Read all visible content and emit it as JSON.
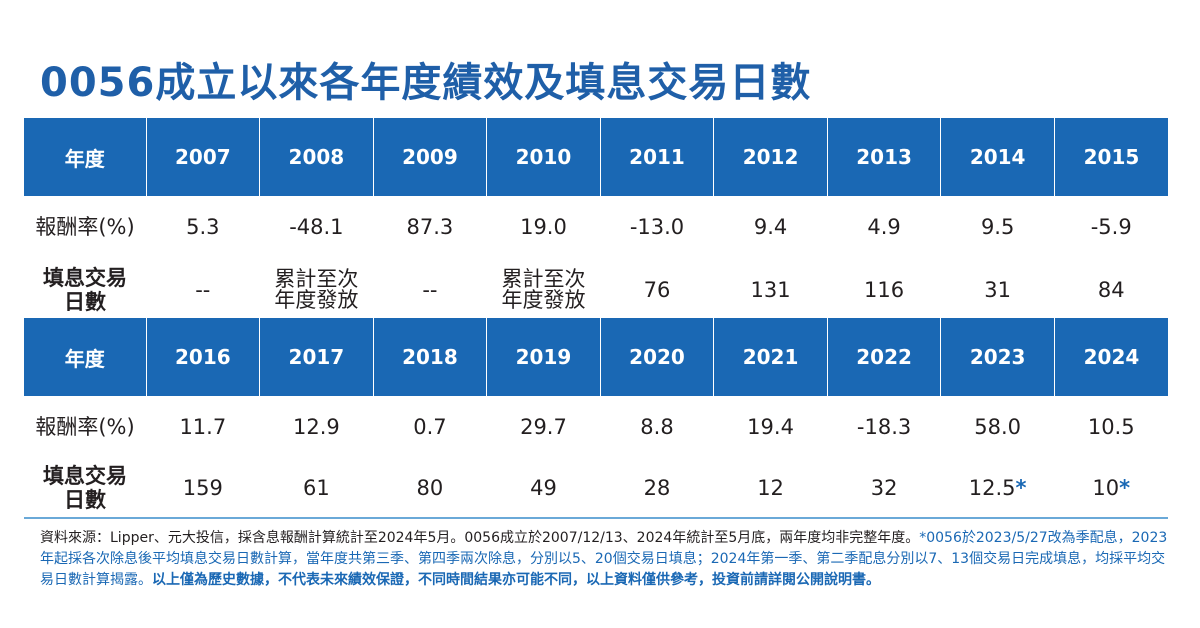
{
  "title": "0056成立以來各年度績效及填息交易日數",
  "table": {
    "header_label": "年度",
    "return_label": "報酬率(%)",
    "days_label_line1": "填息交易",
    "days_label_line2": "日數",
    "blocks": [
      {
        "years": [
          "2007",
          "2008",
          "2009",
          "2010",
          "2011",
          "2012",
          "2013",
          "2014",
          "2015"
        ],
        "returns": [
          "5.3",
          "-48.1",
          "87.3",
          "19.0",
          "-13.0",
          "9.4",
          "4.9",
          "9.5",
          "-5.9"
        ],
        "days": [
          {
            "line1": "--",
            "line2": ""
          },
          {
            "line1": "累計至次",
            "line2": "年度發放"
          },
          {
            "line1": "--",
            "line2": ""
          },
          {
            "line1": "累計至次",
            "line2": "年度發放"
          },
          {
            "line1": "76",
            "line2": ""
          },
          {
            "line1": "131",
            "line2": ""
          },
          {
            "line1": "116",
            "line2": ""
          },
          {
            "line1": "31",
            "line2": ""
          },
          {
            "line1": "84",
            "line2": ""
          }
        ]
      },
      {
        "years": [
          "2016",
          "2017",
          "2018",
          "2019",
          "2020",
          "2021",
          "2022",
          "2023",
          "2024"
        ],
        "returns": [
          "11.7",
          "12.9",
          "0.7",
          "29.7",
          "8.8",
          "19.4",
          "-18.3",
          "58.0",
          "10.5"
        ],
        "days": [
          {
            "value": "159",
            "star": ""
          },
          {
            "value": "61",
            "star": ""
          },
          {
            "value": "80",
            "star": ""
          },
          {
            "value": "49",
            "star": ""
          },
          {
            "value": "28",
            "star": ""
          },
          {
            "value": "12",
            "star": ""
          },
          {
            "value": "32",
            "star": ""
          },
          {
            "value": "12.5",
            "star": "*"
          },
          {
            "value": "10",
            "star": "*"
          }
        ]
      }
    ]
  },
  "note": {
    "part1": "資料來源：Lipper、元大投信，採含息報酬計算統計至2024年5月。0056成立於2007/12/13、2024年統計至5月底，兩年度均非完整年度。",
    "part2": "*0056於2023/5/27改為季配息，2023年起採各次除息後平均填息交易日數計算，當年度共第三季、第四季兩次除息，分別以5、20個交易日填息；2024年第一季、第二季配息分別以7、13個交易日完成填息，均採平均交易日數計算揭露。",
    "part3": "以上僅為歷史數據，不代表未來績效保證，不同時間結果亦可能不同，以上資料僅供參考，投資前請詳閱公開說明書。"
  },
  "colors": {
    "title": "#1f5fa8",
    "header_bg": "#1a68b4",
    "rule": "#6aa9d8"
  }
}
